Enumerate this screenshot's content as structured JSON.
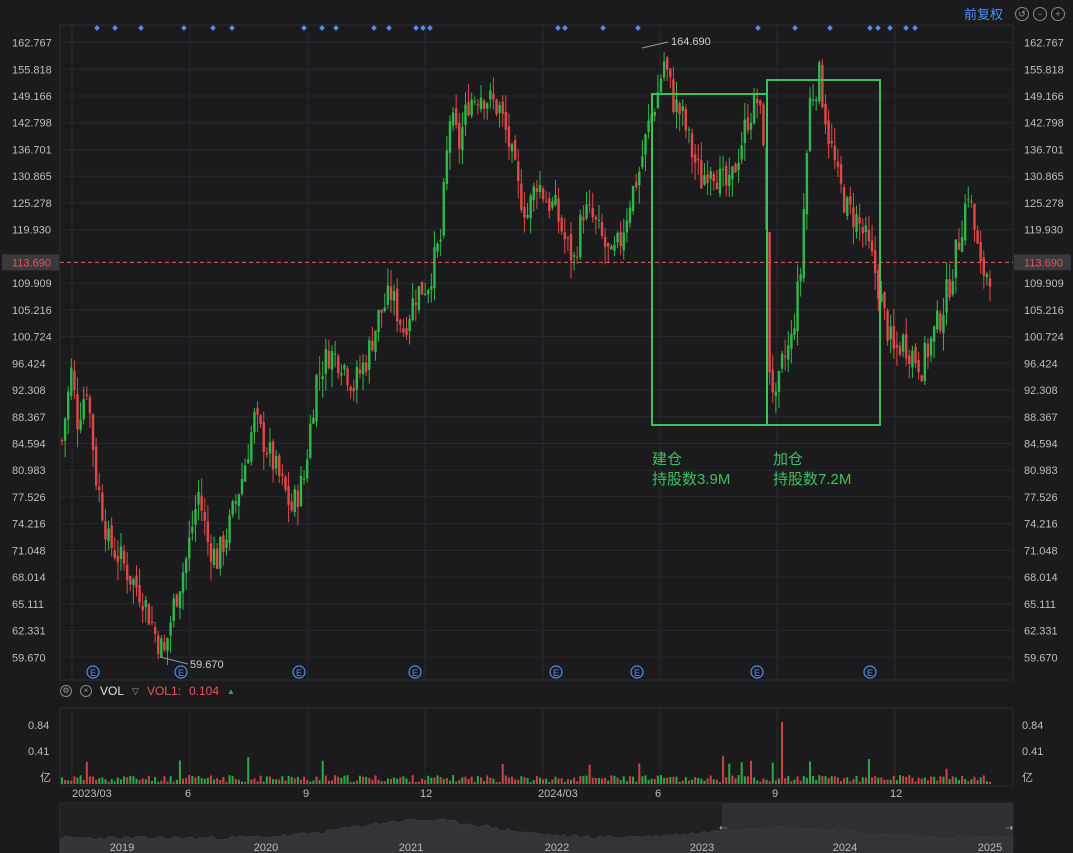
{
  "toolbar": {
    "adjust_label": "前复权",
    "reset_icon": "undo-icon",
    "zoom_out_icon": "minus-icon",
    "zoom_in_icon": "plus-icon"
  },
  "colors": {
    "up": "#2fb84a",
    "down": "#e04848",
    "accent": "#4d8ff5",
    "annotation": "#3cc25c",
    "current_line": "#e8664a"
  },
  "volume_panel": {
    "settings_icon": "gear-icon",
    "close_icon": "close-icon",
    "name": "VOL",
    "series_label": "VOL1:",
    "series_value": "0.104",
    "unit": "亿",
    "y_ticks": [
      "0.84",
      "0.41"
    ]
  },
  "annotations": [
    {
      "line1": "建仓",
      "line2": "持股数3.9M"
    },
    {
      "line1": "加仓",
      "line2": "持股数7.2M"
    }
  ],
  "chart_data": {
    "type": "candlestick",
    "y_ticks": [
      "162.767",
      "155.818",
      "149.166",
      "142.798",
      "136.701",
      "130.865",
      "125.278",
      "119.930",
      "109.909",
      "105.216",
      "100.724",
      "96.424",
      "92.308",
      "88.367",
      "84.594",
      "80.983",
      "77.526",
      "74.216",
      "71.048",
      "68.014",
      "65.111",
      "62.331",
      "59.670"
    ],
    "ylim": [
      57.5,
      167.5
    ],
    "log_scale": true,
    "current_price": "113.690",
    "max_label": "164.690",
    "min_label": "59.670",
    "x_labels": [
      "2023/03",
      "6",
      "9",
      "12",
      "2024/03",
      "6",
      "9",
      "12"
    ],
    "overview_years": [
      "2019",
      "2020",
      "2021",
      "2022",
      "2023",
      "2024",
      "2025"
    ],
    "event_marker_label": "E",
    "price_path": [
      [
        0,
        85
      ],
      [
        3,
        95
      ],
      [
        5,
        88
      ],
      [
        8,
        93
      ],
      [
        11,
        80
      ],
      [
        15,
        72
      ],
      [
        19,
        70
      ],
      [
        22,
        68
      ],
      [
        26,
        66
      ],
      [
        30,
        62
      ],
      [
        33,
        60
      ],
      [
        36,
        65
      ],
      [
        40,
        70
      ],
      [
        44,
        78
      ],
      [
        47,
        72
      ],
      [
        50,
        70
      ],
      [
        54,
        74
      ],
      [
        58,
        80
      ],
      [
        62,
        88
      ],
      [
        66,
        84
      ],
      [
        70,
        80
      ],
      [
        74,
        76
      ],
      [
        78,
        80
      ],
      [
        82,
        94
      ],
      [
        86,
        98
      ],
      [
        90,
        97
      ],
      [
        94,
        93
      ],
      [
        98,
        97
      ],
      [
        102,
        104
      ],
      [
        106,
        108
      ],
      [
        110,
        102
      ],
      [
        114,
        108
      ],
      [
        118,
        110
      ],
      [
        122,
        118
      ],
      [
        125,
        144
      ],
      [
        128,
        138
      ],
      [
        131,
        148
      ],
      [
        135,
        150
      ],
      [
        138,
        148
      ],
      [
        141,
        146
      ],
      [
        144,
        138
      ],
      [
        147,
        128
      ],
      [
        150,
        123
      ],
      [
        153,
        130
      ],
      [
        156,
        126
      ],
      [
        159,
        124
      ],
      [
        162,
        118
      ],
      [
        165,
        114
      ],
      [
        168,
        124
      ],
      [
        171,
        122
      ],
      [
        174,
        118
      ],
      [
        177,
        114
      ],
      [
        180,
        118
      ],
      [
        183,
        126
      ],
      [
        186,
        132
      ],
      [
        189,
        142
      ],
      [
        192,
        150
      ],
      [
        194,
        158
      ],
      [
        197,
        148
      ],
      [
        200,
        144
      ],
      [
        203,
        136
      ],
      [
        206,
        130
      ],
      [
        209,
        134
      ],
      [
        212,
        130
      ],
      [
        215,
        128
      ],
      [
        218,
        136
      ],
      [
        221,
        144
      ],
      [
        224,
        148
      ],
      [
        226,
        140
      ],
      [
        228,
        96
      ],
      [
        230,
        90
      ],
      [
        232,
        96
      ],
      [
        235,
        100
      ],
      [
        238,
        112
      ],
      [
        241,
        148
      ],
      [
        244,
        154
      ],
      [
        247,
        140
      ],
      [
        250,
        130
      ],
      [
        253,
        124
      ],
      [
        256,
        122
      ],
      [
        259,
        118
      ],
      [
        262,
        112
      ],
      [
        265,
        104
      ],
      [
        268,
        98
      ],
      [
        271,
        100
      ],
      [
        274,
        98
      ],
      [
        277,
        96
      ],
      [
        280,
        100
      ],
      [
        283,
        104
      ],
      [
        286,
        110
      ],
      [
        289,
        118
      ],
      [
        292,
        128
      ],
      [
        294,
        120
      ],
      [
        296,
        112
      ]
    ],
    "volume_spike_indices": [
      8,
      38,
      60,
      84,
      142,
      170,
      186,
      213,
      215,
      219,
      222,
      229,
      241,
      260,
      285
    ]
  }
}
